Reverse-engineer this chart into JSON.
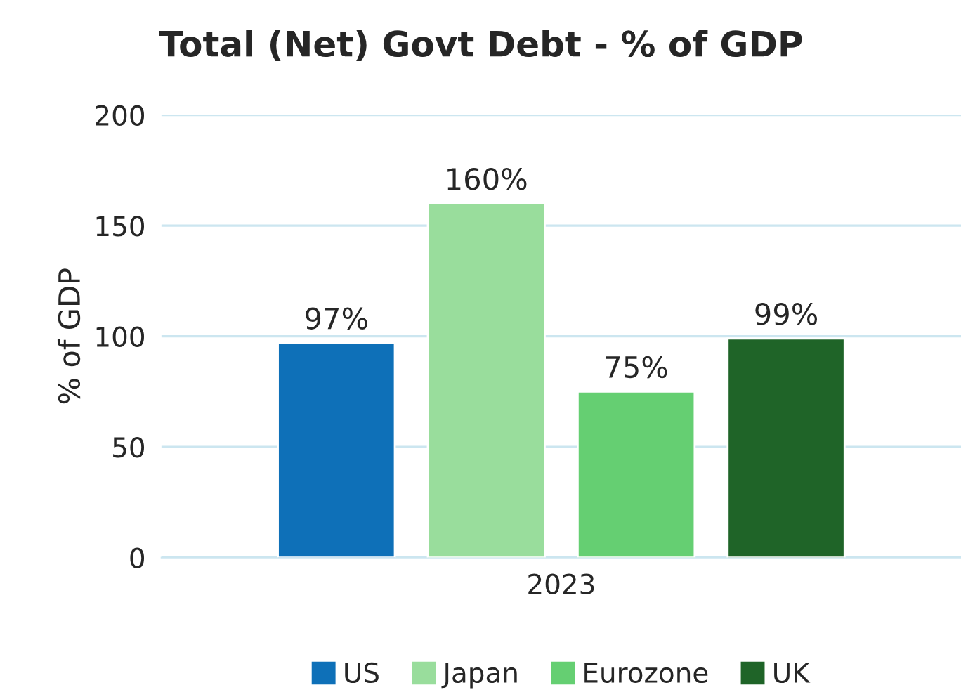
{
  "chart_data": {
    "type": "bar",
    "title": "Total (Net) Govt Debt - % of GDP",
    "ylabel": "% of GDP",
    "categories": [
      "2023"
    ],
    "series": [
      {
        "name": "US",
        "color": "#0e70b8",
        "values": [
          97
        ],
        "value_labels": [
          "97%"
        ]
      },
      {
        "name": "Japan",
        "color": "#99dd9c",
        "values": [
          160
        ],
        "value_labels": [
          "160%"
        ]
      },
      {
        "name": "Eurozone",
        "color": "#65cf72",
        "values": [
          75
        ],
        "value_labels": [
          "75%"
        ]
      },
      {
        "name": "UK",
        "color": "#1f6428",
        "values": [
          99
        ],
        "value_labels": [
          "99%"
        ]
      }
    ],
    "ylim": [
      0,
      200
    ],
    "yticks": [
      0,
      50,
      100,
      150,
      200
    ],
    "grid": "y",
    "legend": "bottom"
  }
}
